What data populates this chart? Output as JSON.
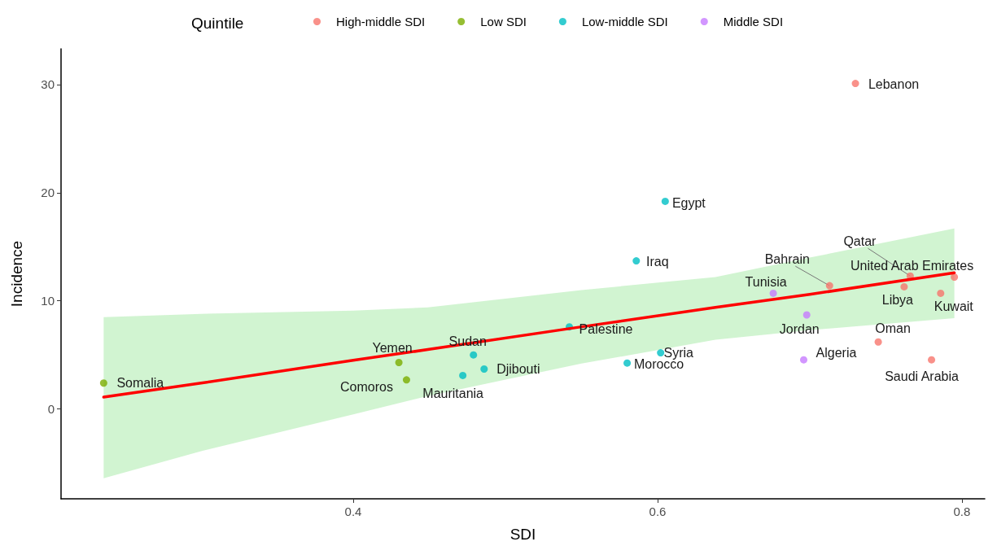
{
  "chart_data": {
    "type": "scatter",
    "xlabel": "SDI",
    "ylabel": "Incidence",
    "legend_title": "Quintile",
    "legend": "top",
    "grid": false,
    "marker": "circle",
    "xlim": [
      0.208,
      0.815
    ],
    "xticks": [
      0.4,
      0.6,
      0.8
    ],
    "ylim": [
      -8.3,
      33.3
    ],
    "yticks": [
      0,
      10,
      20,
      30
    ],
    "series": [
      {
        "name": "High-middle SDI",
        "color": "#f8766d",
        "x": [
          0.73,
          0.766,
          0.795,
          0.713,
          0.762,
          0.786,
          0.745,
          0.78
        ],
        "values": [
          30.1,
          12.3,
          12.2,
          11.4,
          11.3,
          10.7,
          6.2,
          4.55
        ]
      },
      {
        "name": "Low SDI",
        "color": "#7cae00",
        "x": [
          0.236,
          0.43,
          0.435
        ],
        "values": [
          2.4,
          4.3,
          2.7
        ]
      },
      {
        "name": "Low-middle SDI",
        "color": "#00bfc4",
        "x": [
          0.605,
          0.586,
          0.542,
          0.602,
          0.58,
          0.479,
          0.486,
          0.472
        ],
        "values": [
          19.2,
          13.7,
          7.6,
          5.2,
          4.25,
          5.0,
          3.7,
          3.1
        ]
      },
      {
        "name": "Middle SDI",
        "color": "#c77cff",
        "x": [
          0.676,
          0.698,
          0.696
        ],
        "values": [
          10.7,
          8.7,
          4.55
        ]
      },
      {
        "type": "line",
        "color": "#ff0000",
        "marker": "none",
        "x": [
          0.236,
          0.3,
          0.4,
          0.449,
          0.55,
          0.638,
          0.7,
          0.795
        ],
        "values": [
          1.1,
          2.4,
          4.5,
          5.5,
          7.6,
          9.4,
          10.6,
          12.6
        ],
        "lower": [
          -6.4,
          -3.9,
          -0.5,
          1.2,
          4.2,
          6.4,
          7.3,
          8.4
        ],
        "upper": [
          8.5,
          8.8,
          9.1,
          9.4,
          11.0,
          12.2,
          14.0,
          16.7
        ]
      }
    ],
    "annotations": [
      {
        "text": "Lebanon",
        "x": 0.73,
        "y": 30.1
      },
      {
        "text": "Egypt",
        "x": 0.605,
        "y": 19.2
      },
      {
        "text": "Iraq",
        "x": 0.586,
        "y": 13.7
      },
      {
        "text": "Qatar",
        "x": 0.766,
        "y": 12.3
      },
      {
        "text": "United Arab Emirates",
        "x": 0.795,
        "y": 12.2
      },
      {
        "text": "Bahrain",
        "x": 0.713,
        "y": 11.4
      },
      {
        "text": "Tunisia",
        "x": 0.676,
        "y": 10.7
      },
      {
        "text": "Libya",
        "x": 0.762,
        "y": 11.3
      },
      {
        "text": "Kuwait",
        "x": 0.786,
        "y": 10.7
      },
      {
        "text": "Jordan",
        "x": 0.698,
        "y": 8.7
      },
      {
        "text": "Oman",
        "x": 0.745,
        "y": 6.2
      },
      {
        "text": "Palestine",
        "x": 0.542,
        "y": 7.6
      },
      {
        "text": "Syria",
        "x": 0.602,
        "y": 5.2
      },
      {
        "text": "Algeria",
        "x": 0.696,
        "y": 4.55
      },
      {
        "text": "Yemen",
        "x": 0.43,
        "y": 4.3
      },
      {
        "text": "Sudan",
        "x": 0.479,
        "y": 5.0
      },
      {
        "text": "Djibouti",
        "x": 0.486,
        "y": 3.7
      },
      {
        "text": "Morocco",
        "x": 0.58,
        "y": 4.25
      },
      {
        "text": "Somalia",
        "x": 0.236,
        "y": 2.4
      },
      {
        "text": "Comoros",
        "x": 0.435,
        "y": 2.7
      },
      {
        "text": "Mauritania",
        "x": 0.472,
        "y": 3.1
      },
      {
        "text": "Saudi Arabia",
        "x": 0.78,
        "y": 4.55
      }
    ]
  }
}
